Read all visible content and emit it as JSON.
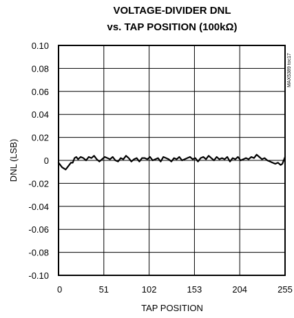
{
  "chart_data": {
    "type": "line",
    "title_line1": "VOLTAGE-DIVIDER DNL",
    "title_line2": "vs. TAP POSITION (100kΩ)",
    "xlabel": "TAP POSITION",
    "ylabel": "DNL (LSB)",
    "side_note": "MAX5389 toc17",
    "xlim": [
      0,
      255
    ],
    "ylim": [
      -0.1,
      0.1
    ],
    "x_ticks": [
      0,
      51,
      102,
      153,
      204,
      255
    ],
    "x_tick_labels": [
      "0",
      "51",
      "102",
      "153",
      "204",
      "255"
    ],
    "y_ticks": [
      0.1,
      0.08,
      0.06,
      0.04,
      0.02,
      0,
      -0.02,
      -0.04,
      -0.06,
      -0.08,
      -0.1
    ],
    "y_tick_labels": [
      "0.10",
      "0.08",
      "0.06",
      "0.04",
      "0.02",
      "0",
      "-0.02",
      "-0.04",
      "-0.06",
      "-0.08",
      "-0.10"
    ],
    "grid": true,
    "series": [
      {
        "color": "#000000",
        "x": [
          0,
          2,
          4,
          6,
          8,
          10,
          12,
          14,
          16,
          18,
          20,
          22,
          25,
          28,
          31,
          34,
          37,
          40,
          43,
          46,
          49,
          52,
          55,
          58,
          61,
          64,
          67,
          70,
          73,
          76,
          79,
          82,
          85,
          88,
          91,
          94,
          97,
          100,
          103,
          106,
          109,
          112,
          115,
          118,
          121,
          124,
          127,
          130,
          133,
          136,
          139,
          142,
          145,
          148,
          151,
          154,
          157,
          160,
          163,
          166,
          169,
          172,
          175,
          178,
          181,
          184,
          187,
          190,
          193,
          196,
          199,
          202,
          205,
          208,
          211,
          214,
          217,
          220,
          223,
          226,
          229,
          232,
          235,
          238,
          241,
          244,
          247,
          250,
          252,
          253,
          254,
          255
        ],
        "y": [
          -0.002,
          -0.004,
          -0.006,
          -0.007,
          -0.008,
          -0.006,
          -0.004,
          -0.002,
          -0.002,
          0.002,
          0.003,
          0.001,
          0.003,
          0.002,
          0.0,
          0.003,
          0.002,
          0.004,
          0.001,
          -0.001,
          0.001,
          0.003,
          0.002,
          0.001,
          0.003,
          0.0,
          -0.001,
          0.002,
          0.001,
          0.004,
          0.002,
          -0.001,
          0.001,
          0.002,
          -0.001,
          0.002,
          0.002,
          0.001,
          0.003,
          0.0,
          0.001,
          0.002,
          -0.001,
          0.003,
          0.002,
          0.001,
          -0.001,
          0.002,
          0.001,
          0.003,
          0.0,
          0.001,
          0.002,
          0.003,
          0.001,
          0.002,
          -0.001,
          0.002,
          0.003,
          0.001,
          0.004,
          0.002,
          0.0,
          0.003,
          0.001,
          0.002,
          0.001,
          0.003,
          -0.001,
          0.002,
          0.001,
          0.003,
          0.0,
          0.001,
          0.002,
          0.001,
          0.003,
          0.002,
          0.005,
          0.003,
          0.001,
          0.002,
          0.0,
          -0.001,
          -0.002,
          -0.003,
          -0.002,
          -0.004,
          -0.003,
          -0.001,
          0.001,
          0.003
        ]
      }
    ]
  }
}
